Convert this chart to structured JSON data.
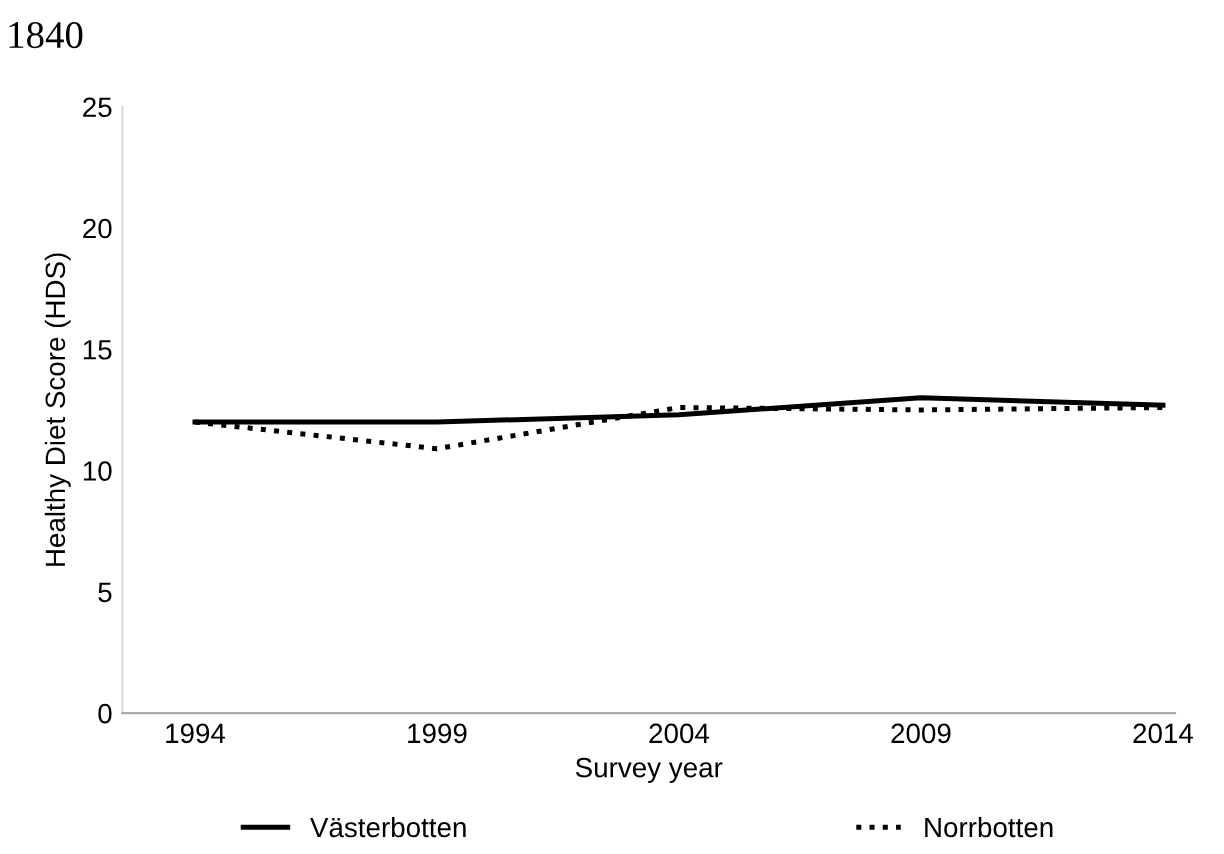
{
  "chart_data": {
    "type": "line",
    "annotations": [
      "1840"
    ],
    "xlabel": "Survey year",
    "ylabel": "Healthy Diet Score (HDS)",
    "categories": [
      "1994",
      "1999",
      "2004",
      "2009",
      "2014"
    ],
    "series": [
      {
        "name": "Västerbotten",
        "color": "#000000",
        "line_style": "solid",
        "values": [
          12.0,
          12.0,
          12.3,
          13.0,
          12.7
        ]
      },
      {
        "name": "Norrbotten",
        "color": "#000000",
        "line_style": "dotted",
        "values": [
          12.0,
          10.9,
          12.6,
          12.5,
          12.6
        ]
      }
    ],
    "ylim": [
      0,
      25
    ],
    "yticks": [
      0,
      5,
      10,
      15,
      20,
      25
    ],
    "grid": false,
    "legend": "bottom",
    "marker": "none"
  }
}
